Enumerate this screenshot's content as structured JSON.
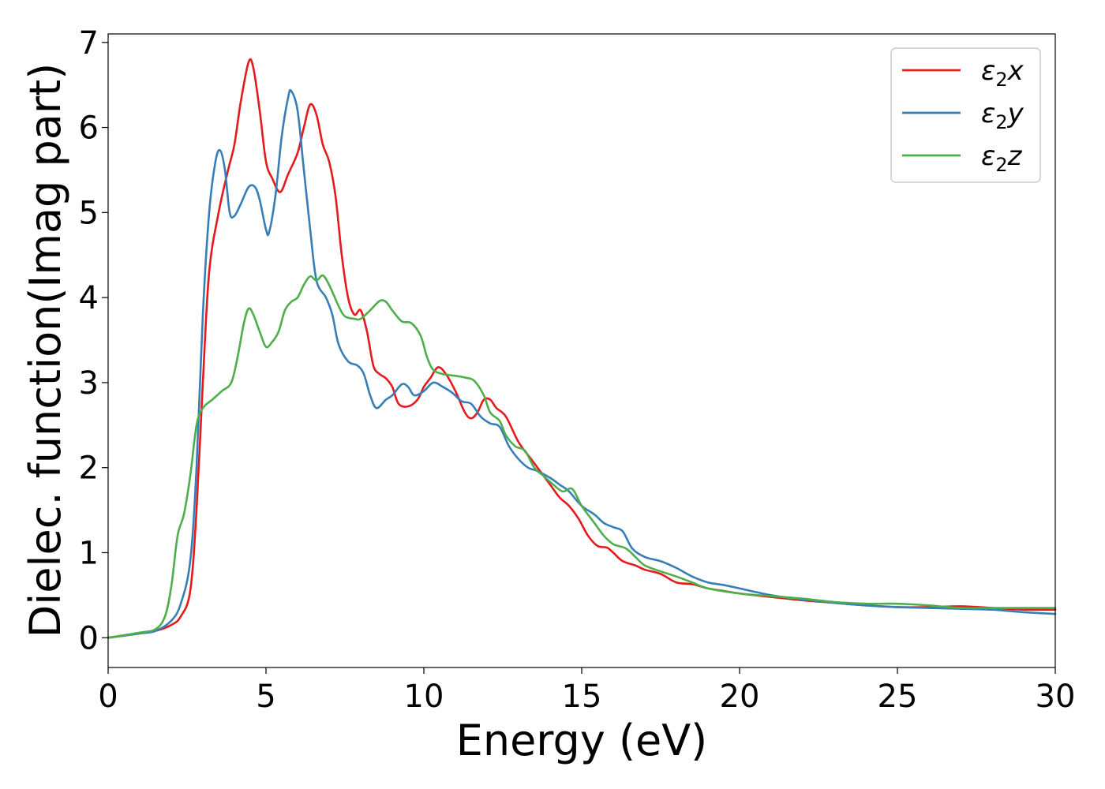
{
  "chart_data": {
    "type": "line",
    "title": "",
    "xlabel": "Energy (eV)",
    "ylabel": "Dielec. function(Imag part)",
    "xlim": [
      0,
      30
    ],
    "ylim": [
      -0.35,
      7.1
    ],
    "xticks": [
      0,
      5,
      10,
      15,
      20,
      25,
      30
    ],
    "xtick_labels": [
      "0",
      "5",
      "10",
      "15",
      "20",
      "25",
      "30"
    ],
    "yticks": [
      0,
      1,
      2,
      3,
      4,
      5,
      6,
      7
    ],
    "ytick_labels": [
      "0",
      "1",
      "2",
      "3",
      "4",
      "5",
      "6",
      "7"
    ],
    "grid": false,
    "legend_position": "top-right",
    "series": [
      {
        "name": "ε2x",
        "legend_base": "ε",
        "legend_sub": "2",
        "legend_suffix": "x",
        "color": "#e41a1c",
        "points": [
          [
            0,
            0
          ],
          [
            1,
            0.05
          ],
          [
            1.5,
            0.08
          ],
          [
            2,
            0.15
          ],
          [
            2.3,
            0.25
          ],
          [
            2.6,
            0.55
          ],
          [
            2.8,
            1.5
          ],
          [
            3.0,
            3.0
          ],
          [
            3.2,
            4.3
          ],
          [
            3.5,
            5.0
          ],
          [
            3.8,
            5.5
          ],
          [
            4.0,
            5.8
          ],
          [
            4.2,
            6.3
          ],
          [
            4.45,
            6.77
          ],
          [
            4.6,
            6.7
          ],
          [
            4.8,
            6.2
          ],
          [
            5.0,
            5.6
          ],
          [
            5.2,
            5.4
          ],
          [
            5.45,
            5.24
          ],
          [
            5.7,
            5.45
          ],
          [
            6.0,
            5.7
          ],
          [
            6.2,
            6.0
          ],
          [
            6.4,
            6.27
          ],
          [
            6.6,
            6.15
          ],
          [
            6.8,
            5.8
          ],
          [
            7.0,
            5.6
          ],
          [
            7.2,
            5.2
          ],
          [
            7.4,
            4.5
          ],
          [
            7.6,
            4.0
          ],
          [
            7.8,
            3.8
          ],
          [
            8.0,
            3.85
          ],
          [
            8.2,
            3.6
          ],
          [
            8.4,
            3.2
          ],
          [
            8.6,
            3.1
          ],
          [
            8.8,
            3.05
          ],
          [
            9.0,
            2.95
          ],
          [
            9.2,
            2.75
          ],
          [
            9.5,
            2.72
          ],
          [
            9.8,
            2.8
          ],
          [
            10.0,
            2.95
          ],
          [
            10.2,
            3.05
          ],
          [
            10.45,
            3.18
          ],
          [
            10.7,
            3.1
          ],
          [
            11.0,
            2.9
          ],
          [
            11.3,
            2.65
          ],
          [
            11.5,
            2.58
          ],
          [
            11.7,
            2.65
          ],
          [
            11.9,
            2.8
          ],
          [
            12.1,
            2.8
          ],
          [
            12.3,
            2.7
          ],
          [
            12.6,
            2.6
          ],
          [
            13.0,
            2.3
          ],
          [
            13.4,
            2.1
          ],
          [
            13.7,
            1.95
          ],
          [
            14.0,
            1.8
          ],
          [
            14.3,
            1.65
          ],
          [
            14.6,
            1.55
          ],
          [
            14.9,
            1.4
          ],
          [
            15.2,
            1.2
          ],
          [
            15.5,
            1.08
          ],
          [
            15.8,
            1.06
          ],
          [
            16.0,
            1.0
          ],
          [
            16.3,
            0.9
          ],
          [
            16.7,
            0.85
          ],
          [
            17.0,
            0.8
          ],
          [
            17.5,
            0.75
          ],
          [
            18.0,
            0.65
          ],
          [
            18.5,
            0.63
          ],
          [
            19.0,
            0.58
          ],
          [
            19.5,
            0.55
          ],
          [
            20.0,
            0.52
          ],
          [
            21.0,
            0.48
          ],
          [
            22.0,
            0.44
          ],
          [
            23.0,
            0.41
          ],
          [
            24.0,
            0.38
          ],
          [
            25.0,
            0.36
          ],
          [
            26.0,
            0.36
          ],
          [
            27.0,
            0.37
          ],
          [
            28.0,
            0.35
          ],
          [
            29.0,
            0.33
          ],
          [
            30.0,
            0.33
          ]
        ]
      },
      {
        "name": "ε2y",
        "legend_base": "ε",
        "legend_sub": "2",
        "legend_suffix": "y",
        "color": "#377eb8",
        "points": [
          [
            0,
            0
          ],
          [
            1,
            0.05
          ],
          [
            1.5,
            0.08
          ],
          [
            2,
            0.2
          ],
          [
            2.3,
            0.4
          ],
          [
            2.6,
            0.9
          ],
          [
            2.8,
            2.0
          ],
          [
            3.0,
            3.8
          ],
          [
            3.2,
            5.0
          ],
          [
            3.4,
            5.6
          ],
          [
            3.55,
            5.73
          ],
          [
            3.7,
            5.5
          ],
          [
            3.85,
            5.0
          ],
          [
            4.0,
            4.96
          ],
          [
            4.2,
            5.1
          ],
          [
            4.45,
            5.3
          ],
          [
            4.65,
            5.3
          ],
          [
            4.8,
            5.15
          ],
          [
            5.0,
            4.8
          ],
          [
            5.1,
            4.77
          ],
          [
            5.3,
            5.2
          ],
          [
            5.5,
            5.9
          ],
          [
            5.7,
            6.35
          ],
          [
            5.8,
            6.43
          ],
          [
            6.0,
            6.2
          ],
          [
            6.2,
            5.5
          ],
          [
            6.4,
            4.8
          ],
          [
            6.6,
            4.2
          ],
          [
            6.9,
            4.0
          ],
          [
            7.1,
            3.8
          ],
          [
            7.3,
            3.45
          ],
          [
            7.6,
            3.25
          ],
          [
            7.9,
            3.2
          ],
          [
            8.1,
            3.1
          ],
          [
            8.3,
            2.85
          ],
          [
            8.5,
            2.7
          ],
          [
            8.8,
            2.8
          ],
          [
            9.0,
            2.85
          ],
          [
            9.3,
            2.98
          ],
          [
            9.5,
            2.95
          ],
          [
            9.7,
            2.85
          ],
          [
            10.0,
            2.9
          ],
          [
            10.3,
            3.0
          ],
          [
            10.6,
            2.95
          ],
          [
            10.9,
            2.88
          ],
          [
            11.2,
            2.78
          ],
          [
            11.5,
            2.75
          ],
          [
            11.8,
            2.6
          ],
          [
            12.1,
            2.52
          ],
          [
            12.4,
            2.48
          ],
          [
            12.7,
            2.25
          ],
          [
            13.0,
            2.1
          ],
          [
            13.3,
            2.0
          ],
          [
            13.6,
            1.96
          ],
          [
            14.0,
            1.88
          ],
          [
            14.3,
            1.8
          ],
          [
            14.6,
            1.72
          ],
          [
            15.0,
            1.55
          ],
          [
            15.4,
            1.45
          ],
          [
            15.7,
            1.35
          ],
          [
            16.0,
            1.3
          ],
          [
            16.3,
            1.25
          ],
          [
            16.6,
            1.05
          ],
          [
            17.0,
            0.95
          ],
          [
            17.5,
            0.9
          ],
          [
            18.0,
            0.82
          ],
          [
            18.5,
            0.72
          ],
          [
            19.0,
            0.65
          ],
          [
            19.5,
            0.62
          ],
          [
            20.0,
            0.58
          ],
          [
            21.0,
            0.5
          ],
          [
            22.0,
            0.45
          ],
          [
            23.0,
            0.41
          ],
          [
            24.0,
            0.38
          ],
          [
            25.0,
            0.36
          ],
          [
            26.0,
            0.35
          ],
          [
            27.0,
            0.34
          ],
          [
            28.0,
            0.33
          ],
          [
            29.0,
            0.3
          ],
          [
            30.0,
            0.28
          ]
        ]
      },
      {
        "name": "ε2z",
        "legend_base": "ε",
        "legend_sub": "2",
        "legend_suffix": "z",
        "color": "#4daf4a",
        "points": [
          [
            0,
            0
          ],
          [
            1,
            0.06
          ],
          [
            1.5,
            0.1
          ],
          [
            1.8,
            0.25
          ],
          [
            2.0,
            0.6
          ],
          [
            2.2,
            1.2
          ],
          [
            2.4,
            1.45
          ],
          [
            2.6,
            1.9
          ],
          [
            2.8,
            2.5
          ],
          [
            3.0,
            2.7
          ],
          [
            3.3,
            2.8
          ],
          [
            3.6,
            2.9
          ],
          [
            3.9,
            3.0
          ],
          [
            4.1,
            3.3
          ],
          [
            4.3,
            3.7
          ],
          [
            4.45,
            3.87
          ],
          [
            4.6,
            3.8
          ],
          [
            4.8,
            3.6
          ],
          [
            5.0,
            3.42
          ],
          [
            5.2,
            3.48
          ],
          [
            5.4,
            3.6
          ],
          [
            5.6,
            3.85
          ],
          [
            5.8,
            3.95
          ],
          [
            6.0,
            4.0
          ],
          [
            6.2,
            4.15
          ],
          [
            6.4,
            4.25
          ],
          [
            6.6,
            4.2
          ],
          [
            6.8,
            4.26
          ],
          [
            7.0,
            4.15
          ],
          [
            7.3,
            3.9
          ],
          [
            7.5,
            3.78
          ],
          [
            7.8,
            3.75
          ],
          [
            8.0,
            3.75
          ],
          [
            8.3,
            3.85
          ],
          [
            8.6,
            3.96
          ],
          [
            8.8,
            3.95
          ],
          [
            9.0,
            3.85
          ],
          [
            9.3,
            3.72
          ],
          [
            9.6,
            3.7
          ],
          [
            9.9,
            3.55
          ],
          [
            10.1,
            3.3
          ],
          [
            10.3,
            3.15
          ],
          [
            10.6,
            3.1
          ],
          [
            11.0,
            3.08
          ],
          [
            11.3,
            3.06
          ],
          [
            11.6,
            3.02
          ],
          [
            11.9,
            2.85
          ],
          [
            12.1,
            2.65
          ],
          [
            12.4,
            2.55
          ],
          [
            12.6,
            2.38
          ],
          [
            12.9,
            2.25
          ],
          [
            13.2,
            2.2
          ],
          [
            13.5,
            2.0
          ],
          [
            13.8,
            1.9
          ],
          [
            14.1,
            1.8
          ],
          [
            14.4,
            1.72
          ],
          [
            14.7,
            1.75
          ],
          [
            15.0,
            1.55
          ],
          [
            15.4,
            1.35
          ],
          [
            15.7,
            1.2
          ],
          [
            16.0,
            1.1
          ],
          [
            16.4,
            1.05
          ],
          [
            16.7,
            0.95
          ],
          [
            17.0,
            0.85
          ],
          [
            17.5,
            0.78
          ],
          [
            18.0,
            0.72
          ],
          [
            18.5,
            0.65
          ],
          [
            19.0,
            0.58
          ],
          [
            20.0,
            0.52
          ],
          [
            21.0,
            0.49
          ],
          [
            22.0,
            0.46
          ],
          [
            23.0,
            0.42
          ],
          [
            24.0,
            0.4
          ],
          [
            25.0,
            0.4
          ],
          [
            26.0,
            0.38
          ],
          [
            27.0,
            0.35
          ],
          [
            28.0,
            0.35
          ],
          [
            29.0,
            0.35
          ],
          [
            30.0,
            0.35
          ]
        ]
      }
    ]
  }
}
